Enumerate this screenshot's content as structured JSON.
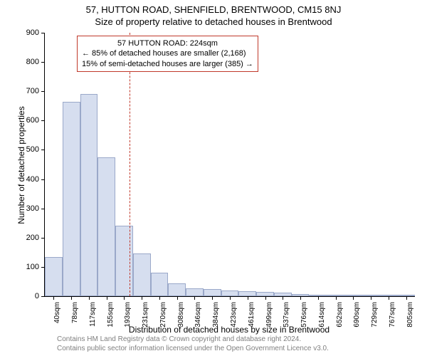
{
  "title": "57, HUTTON ROAD, SHENFIELD, BRENTWOOD, CM15 8NJ",
  "subtitle": "Size of property relative to detached houses in Brentwood",
  "chart": {
    "type": "histogram",
    "background_color": "#ffffff",
    "bar_fill": "#d6deef",
    "bar_border": "#9aa8c9",
    "axis_color": "#000000",
    "refline_color": "#c0392b",
    "ylim": [
      0,
      900
    ],
    "ytick_step": 100,
    "yticks": [
      0,
      100,
      200,
      300,
      400,
      500,
      600,
      700,
      800,
      900
    ],
    "ylabel": "Number of detached properties",
    "xlabel": "Distribution of detached houses by size in Brentwood",
    "label_fontsize": 12,
    "tick_fontsize": 11,
    "xticks": [
      "40sqm",
      "78sqm",
      "117sqm",
      "155sqm",
      "193sqm",
      "231sqm",
      "270sqm",
      "308sqm",
      "346sqm",
      "384sqm",
      "423sqm",
      "461sqm",
      "499sqm",
      "537sqm",
      "576sqm",
      "614sqm",
      "652sqm",
      "690sqm",
      "729sqm",
      "767sqm",
      "805sqm"
    ],
    "values": [
      135,
      665,
      690,
      475,
      240,
      145,
      80,
      45,
      28,
      24,
      20,
      18,
      14,
      12,
      8,
      6,
      4,
      3,
      2,
      1,
      0
    ],
    "bar_count": 21,
    "refline_x_index": 4.8
  },
  "callout": {
    "line1": "57 HUTTON ROAD: 224sqm",
    "line2": "← 85% of detached houses are smaller (2,168)",
    "line3": "15% of semi-detached houses are larger (385) →",
    "border_color": "#c0392b",
    "fontsize": 11
  },
  "footer": {
    "line1": "Contains HM Land Registry data © Crown copyright and database right 2024.",
    "line2": "Contains public sector information licensed under the Open Government Licence v3.0.",
    "color": "#808080",
    "fontsize": 10
  }
}
